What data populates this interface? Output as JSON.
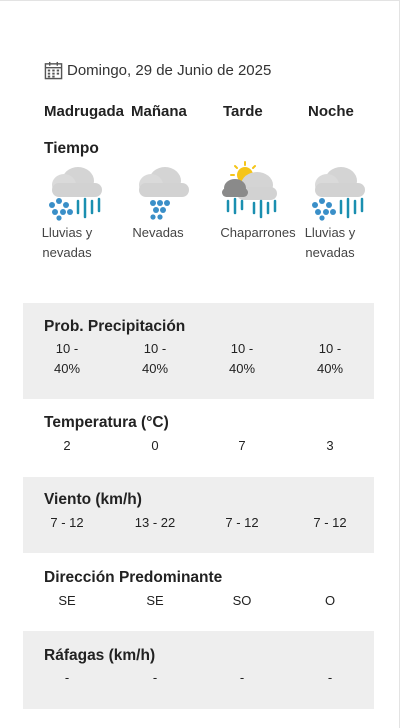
{
  "date": "Domingo, 29 de Junio de 2025",
  "periods": [
    "Madrugada",
    "Mañana",
    "Tarde",
    "Noche"
  ],
  "weather": {
    "title": "Tiempo",
    "conditions": [
      {
        "label": "Lluvias y nevadas",
        "icon": "rain-snow-icon"
      },
      {
        "label": "Nevadas",
        "icon": "snow-icon"
      },
      {
        "label": "Chaparrones",
        "icon": "sun-showers-icon"
      },
      {
        "label": "Lluvias y nevadas",
        "icon": "rain-snow-icon"
      }
    ]
  },
  "precipitation": {
    "title": "Prob. Precipitación",
    "values": [
      "10 - 40%",
      "10 - 40%",
      "10 - 40%",
      "10 - 40%"
    ]
  },
  "temperature": {
    "title": "Temperatura (°C)",
    "values": [
      "2",
      "0",
      "7",
      "3"
    ]
  },
  "wind": {
    "title": "Viento (km/h)",
    "values": [
      "7 - 12",
      "13 - 22",
      "7 - 12",
      "7 - 12"
    ]
  },
  "direction": {
    "title": "Dirección Predominante",
    "values": [
      "SE",
      "SE",
      "SO",
      "O"
    ]
  },
  "gusts": {
    "title": "Ráfagas (km/h)",
    "values": [
      "-",
      "-",
      "-",
      "-"
    ]
  },
  "colors": {
    "band": "#eeeeee",
    "rain": "#1a8fb0",
    "snow": "#3a8fc8",
    "cloud": "#d0d0d0",
    "sun": "#f5c518"
  }
}
